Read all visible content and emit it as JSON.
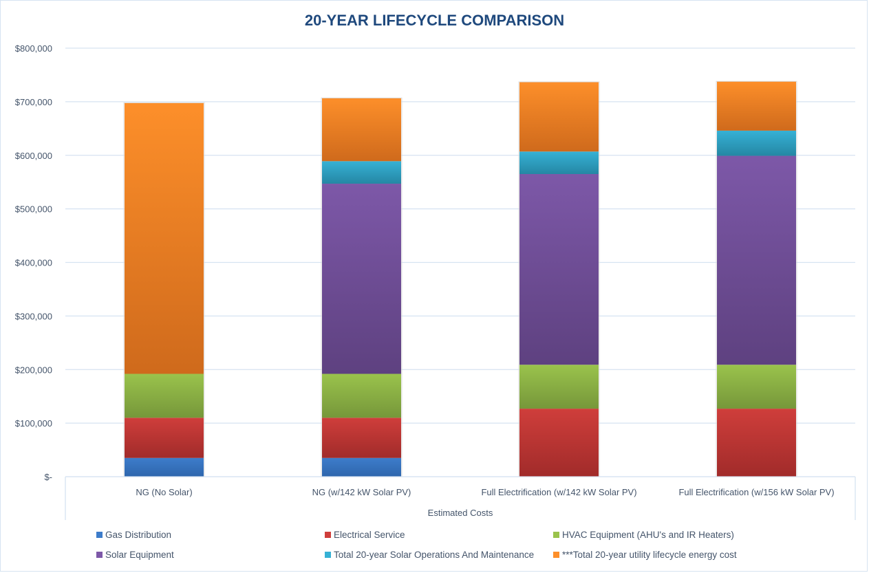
{
  "chart_data": {
    "type": "bar",
    "stacked": true,
    "title": "20-YEAR LIFECYCLE COMPARISON",
    "xlabel": "Estimated Costs",
    "ylabel": "",
    "ylim": [
      0,
      800000
    ],
    "yticks": [
      0,
      100000,
      200000,
      300000,
      400000,
      500000,
      600000,
      700000,
      800000
    ],
    "ytick_labels": [
      "$-",
      "$100,000",
      "$200,000",
      "$300,000",
      "$400,000",
      "$500,000",
      "$600,000",
      "$700,000",
      "$800,000"
    ],
    "grid": true,
    "legend_position": "bottom",
    "categories": [
      "NG (No Solar)",
      "NG (w/142 kW Solar PV)",
      "Full Electrification (w/142 kW Solar PV)",
      "Full Electrification (w/156 kW Solar PV)"
    ],
    "series": [
      {
        "name": "Gas Distribution",
        "color": "#2e66ad",
        "color_light": "#3d7cca",
        "values": [
          35000,
          35000,
          0,
          0
        ]
      },
      {
        "name": "Electrical Service",
        "color": "#a12b2a",
        "color_light": "#cf3e3b",
        "values": [
          75000,
          75000,
          127000,
          127000
        ]
      },
      {
        "name": "HVAC Equipment (AHU's and IR Heaters)",
        "color": "#76973a",
        "color_light": "#9ac34c",
        "values": [
          82000,
          82000,
          82000,
          82000
        ]
      },
      {
        "name": "Solar Equipment",
        "color": "#5e4180",
        "color_light": "#7d58a8",
        "values": [
          0,
          355000,
          356000,
          390000
        ]
      },
      {
        "name": "Total 20-year Solar Operations And Maintenance",
        "color": "#2587a4",
        "color_light": "#36b1d5",
        "values": [
          0,
          42000,
          42000,
          47000
        ]
      },
      {
        "name": "***Total 20-year utility lifecycle energy cost",
        "color": "#cf6a1c",
        "color_light": "#fd8f2a",
        "values": [
          506000,
          118000,
          130000,
          92000
        ]
      }
    ]
  }
}
